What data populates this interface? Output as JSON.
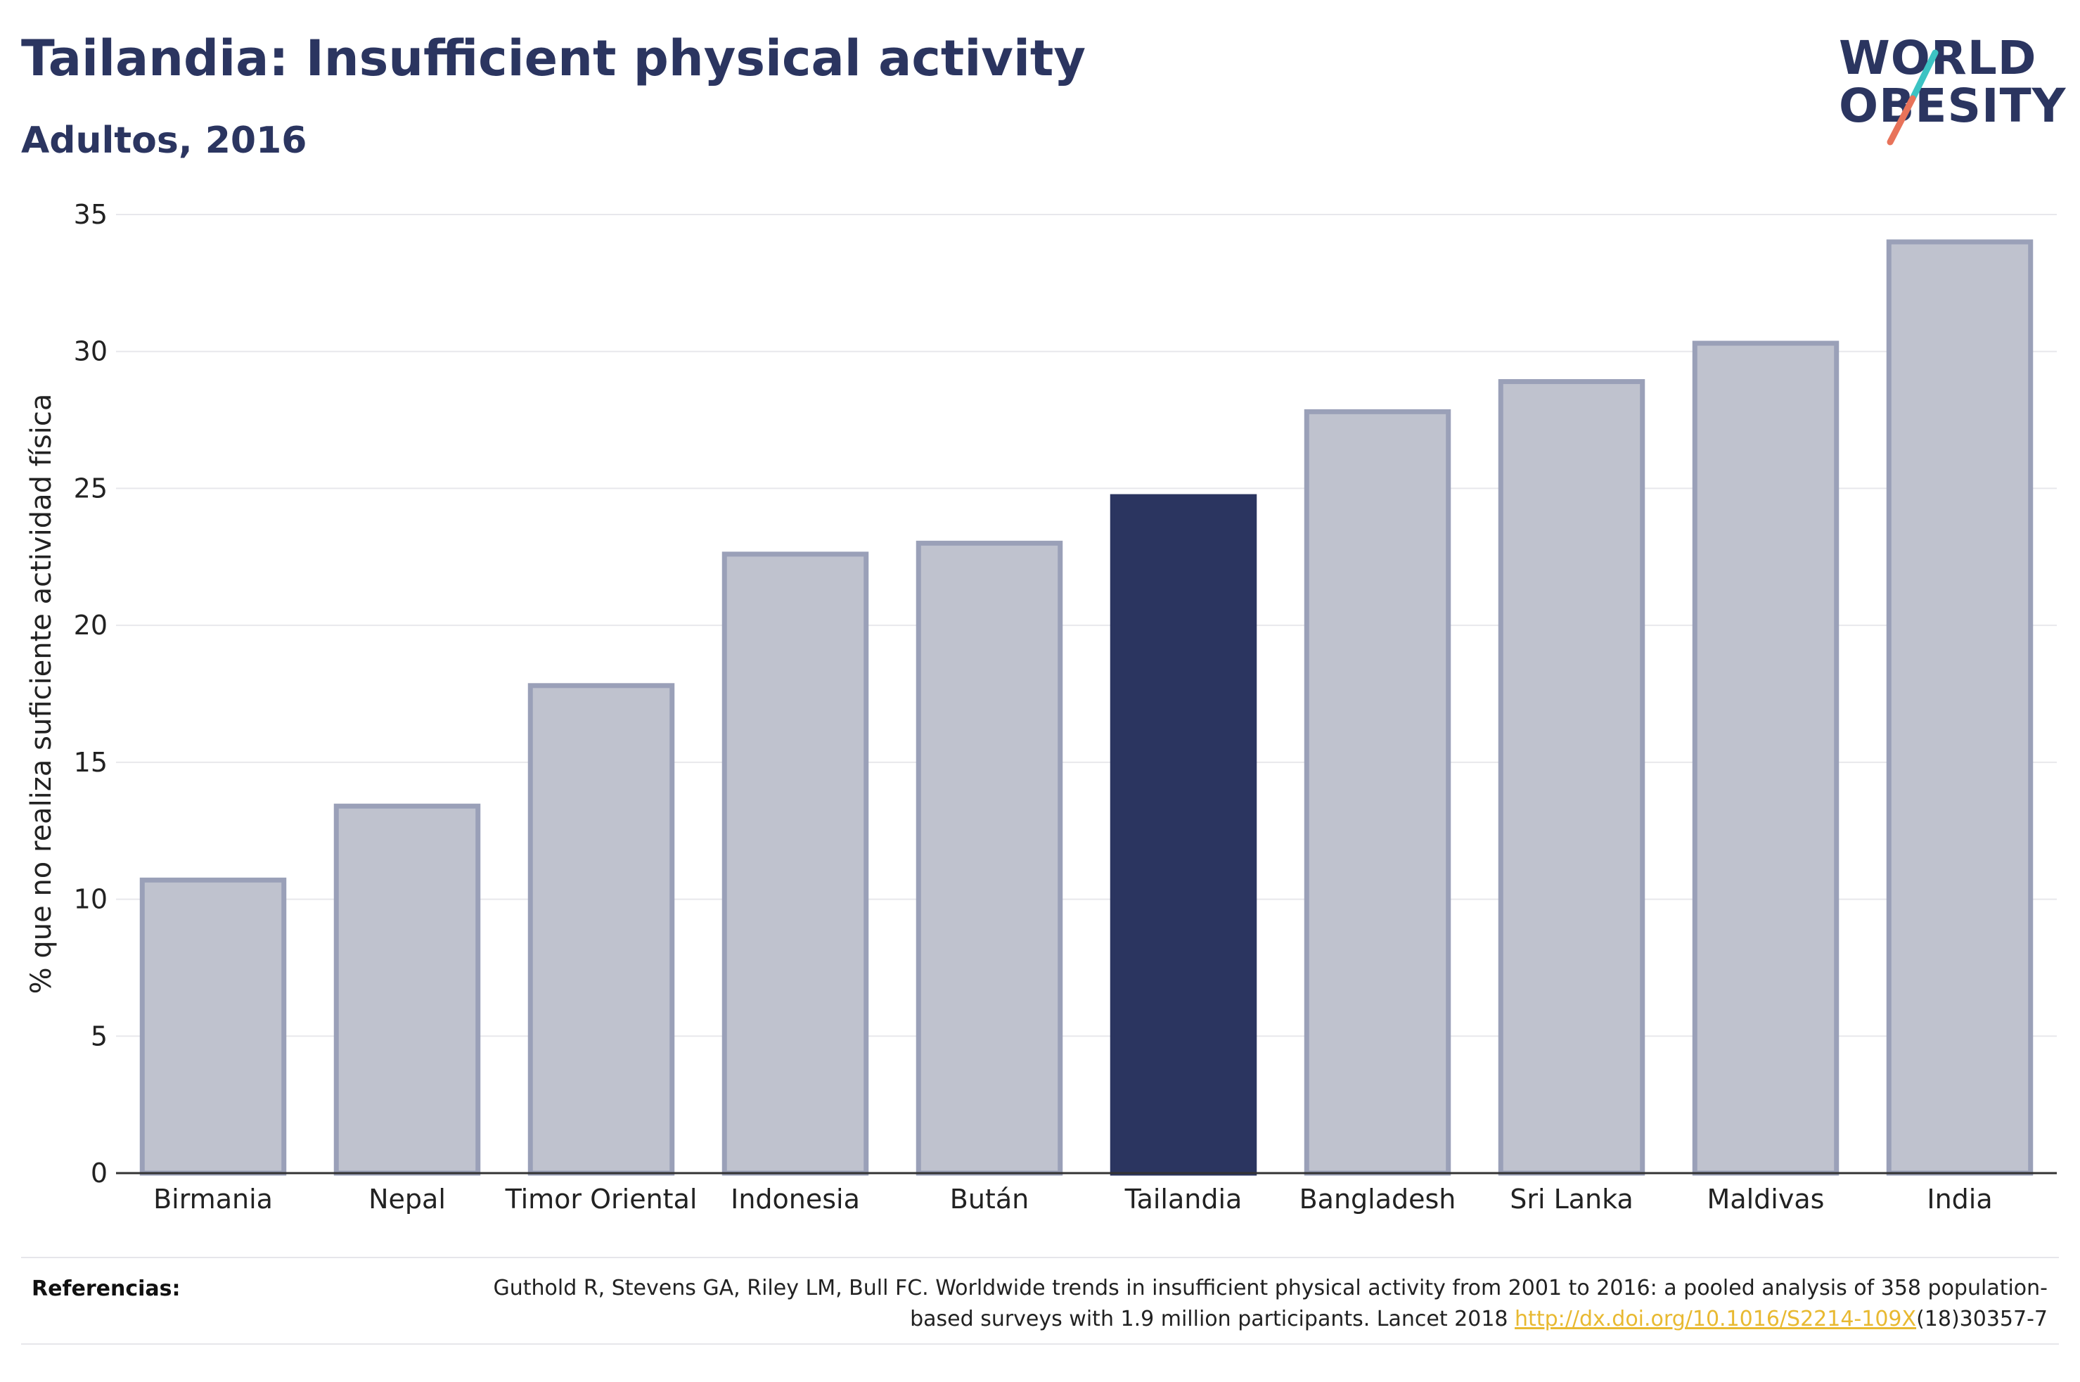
{
  "title": "Tailandia: Insufficient physical activity",
  "subtitle": "Adultos, 2016",
  "logo": {
    "line1": "WORLD",
    "line2": "OBESITY",
    "slash_colors": [
      "#3cc3c3",
      "#e8735a"
    ]
  },
  "chart_data": {
    "type": "bar",
    "categories": [
      "Birmania",
      "Nepal",
      "Timor Oriental",
      "Indonesia",
      "Bután",
      "Tailandia",
      "Bangladesh",
      "Sri Lanka",
      "Maldivas",
      "India"
    ],
    "values": [
      10.7,
      13.4,
      17.8,
      22.6,
      23.0,
      24.7,
      27.8,
      28.9,
      30.3,
      34.0
    ],
    "highlight": "Tailandia",
    "ylabel": "% que no realiza suficiente actividad física",
    "xlabel": "",
    "ylim": [
      0,
      35
    ],
    "yticks": [
      0,
      5,
      10,
      15,
      20,
      25,
      30,
      35
    ],
    "grid": true,
    "colors": {
      "bar": "#bfc2ce",
      "bar_border": "#9aa0b8",
      "highlight": "#2b3560",
      "grid": "#e8e8ec",
      "axis": "#333333"
    }
  },
  "references": {
    "label": "Referencias:",
    "text": "Guthold R, Stevens GA, Riley LM, Bull FC. Worldwide trends in insufficient physical activity from 2001 to 2016: a pooled analysis of 358 population-based surveys with 1.9 million participants. Lancet 2018 ",
    "link": "http://dx.doi.org/10.1016/S2214-109X",
    "suffix": "(18)30357-7"
  }
}
